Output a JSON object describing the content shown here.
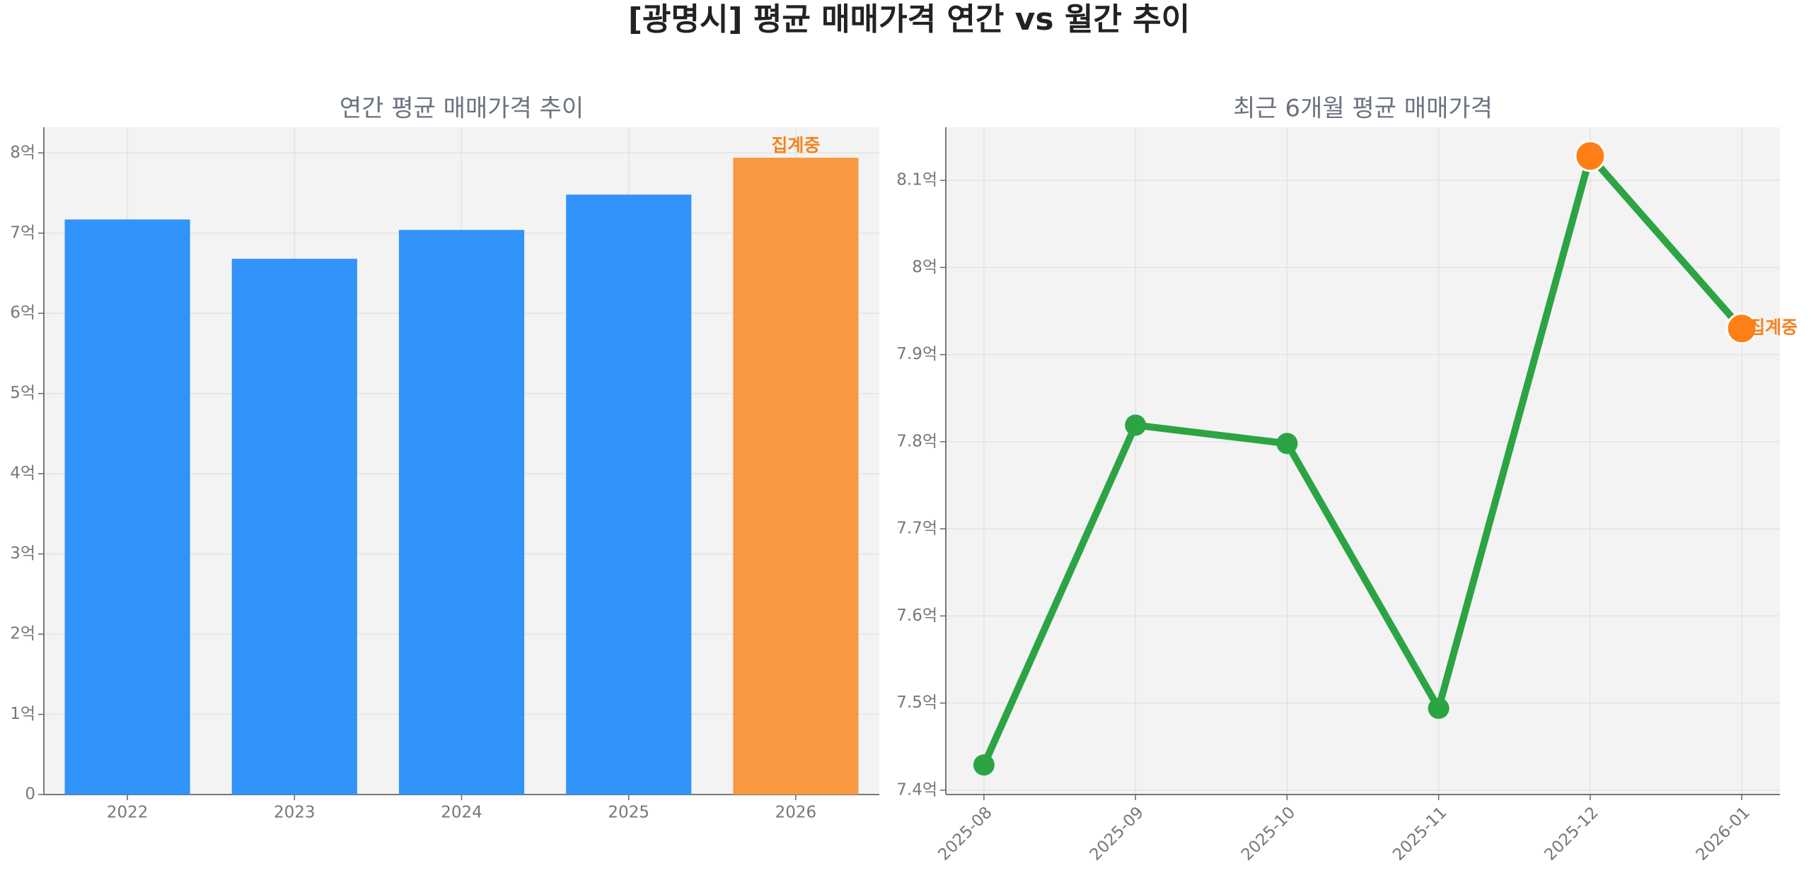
{
  "title": "[광명시] 평균 매매가격 연간 vs 월간 추이",
  "chart_data": [
    {
      "type": "bar",
      "title": "연간 평균 매매가격 추이",
      "categories": [
        "2022",
        "2023",
        "2024",
        "2025",
        "2026"
      ],
      "values": [
        7.17,
        6.68,
        7.04,
        7.48,
        7.94
      ],
      "colors": [
        "#3293fb",
        "#3293fb",
        "#3293fb",
        "#3293fb",
        "#f99840"
      ],
      "annotation": "집계중",
      "annotation_color": "#f5821f",
      "ylim": [
        0,
        8.32
      ],
      "yticks": [
        0,
        {
          "value": 1,
          "label": "1억"
        },
        {
          "value": 2,
          "label": "2억"
        },
        {
          "value": 3,
          "label": "3억"
        },
        {
          "value": 4,
          "label": "4억"
        },
        {
          "value": 5,
          "label": "5억"
        },
        {
          "value": 6,
          "label": "6억"
        },
        {
          "value": 7,
          "label": "7억"
        },
        {
          "value": 8,
          "label": "8억"
        }
      ],
      "grid": true
    },
    {
      "type": "line",
      "title": "최근 6개월 평균 매매가격",
      "categories": [
        "2025-08",
        "2025-09",
        "2025-10",
        "2025-11",
        "2025-12",
        "2026-01"
      ],
      "values": [
        7.429,
        7.819,
        7.798,
        7.494,
        8.128,
        7.93
      ],
      "color": "#2ca444",
      "marker_colors": [
        "#2ca444",
        "#2ca444",
        "#2ca444",
        "#2ca444",
        "#fd7f16",
        "#fd7f16"
      ],
      "annotation": "집계중",
      "annotation_color": "#f5821f",
      "ylim": [
        7.395,
        8.161
      ],
      "yticks": [
        {
          "value": 7.4,
          "label": "7.4억"
        },
        {
          "value": 7.5,
          "label": "7.5억"
        },
        {
          "value": 7.6,
          "label": "7.6억"
        },
        {
          "value": 7.7,
          "label": "7.7억"
        },
        {
          "value": 7.8,
          "label": "7.8억"
        },
        {
          "value": 7.9,
          "label": "7.9억"
        },
        {
          "value": 8,
          "label": "8억"
        },
        {
          "value": 8.1,
          "label": "8.1억"
        }
      ],
      "grid": true
    }
  ]
}
